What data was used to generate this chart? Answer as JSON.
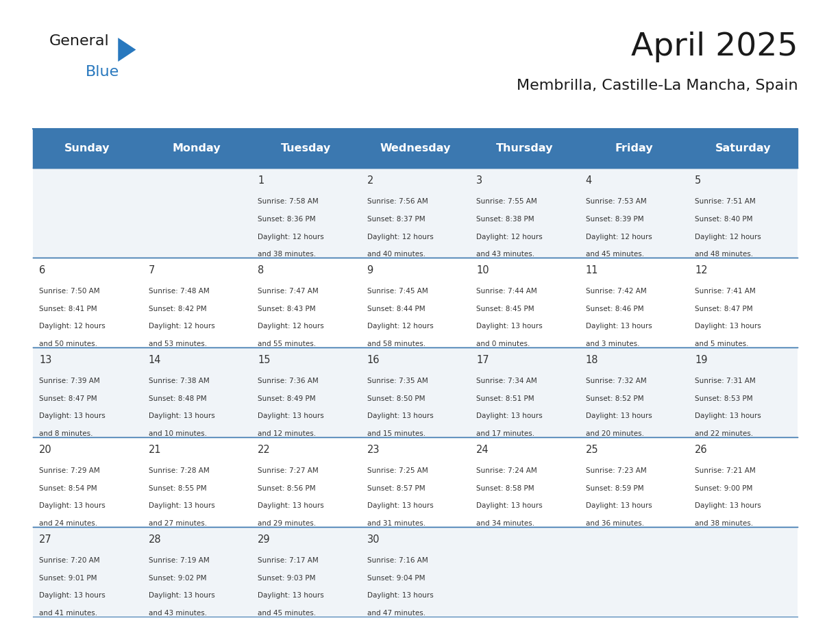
{
  "title": "April 2025",
  "subtitle": "Membrilla, Castille-La Mancha, Spain",
  "header_bg_color": "#3b78b0",
  "header_text_color": "#ffffff",
  "cell_bg_even": "#f0f4f8",
  "cell_bg_odd": "#ffffff",
  "border_color": "#3b78b0",
  "text_color": "#333333",
  "days_of_week": [
    "Sunday",
    "Monday",
    "Tuesday",
    "Wednesday",
    "Thursday",
    "Friday",
    "Saturday"
  ],
  "weeks": [
    [
      {
        "day": "",
        "info": ""
      },
      {
        "day": "",
        "info": ""
      },
      {
        "day": "1",
        "info": "Sunrise: 7:58 AM\nSunset: 8:36 PM\nDaylight: 12 hours\nand 38 minutes."
      },
      {
        "day": "2",
        "info": "Sunrise: 7:56 AM\nSunset: 8:37 PM\nDaylight: 12 hours\nand 40 minutes."
      },
      {
        "day": "3",
        "info": "Sunrise: 7:55 AM\nSunset: 8:38 PM\nDaylight: 12 hours\nand 43 minutes."
      },
      {
        "day": "4",
        "info": "Sunrise: 7:53 AM\nSunset: 8:39 PM\nDaylight: 12 hours\nand 45 minutes."
      },
      {
        "day": "5",
        "info": "Sunrise: 7:51 AM\nSunset: 8:40 PM\nDaylight: 12 hours\nand 48 minutes."
      }
    ],
    [
      {
        "day": "6",
        "info": "Sunrise: 7:50 AM\nSunset: 8:41 PM\nDaylight: 12 hours\nand 50 minutes."
      },
      {
        "day": "7",
        "info": "Sunrise: 7:48 AM\nSunset: 8:42 PM\nDaylight: 12 hours\nand 53 minutes."
      },
      {
        "day": "8",
        "info": "Sunrise: 7:47 AM\nSunset: 8:43 PM\nDaylight: 12 hours\nand 55 minutes."
      },
      {
        "day": "9",
        "info": "Sunrise: 7:45 AM\nSunset: 8:44 PM\nDaylight: 12 hours\nand 58 minutes."
      },
      {
        "day": "10",
        "info": "Sunrise: 7:44 AM\nSunset: 8:45 PM\nDaylight: 13 hours\nand 0 minutes."
      },
      {
        "day": "11",
        "info": "Sunrise: 7:42 AM\nSunset: 8:46 PM\nDaylight: 13 hours\nand 3 minutes."
      },
      {
        "day": "12",
        "info": "Sunrise: 7:41 AM\nSunset: 8:47 PM\nDaylight: 13 hours\nand 5 minutes."
      }
    ],
    [
      {
        "day": "13",
        "info": "Sunrise: 7:39 AM\nSunset: 8:47 PM\nDaylight: 13 hours\nand 8 minutes."
      },
      {
        "day": "14",
        "info": "Sunrise: 7:38 AM\nSunset: 8:48 PM\nDaylight: 13 hours\nand 10 minutes."
      },
      {
        "day": "15",
        "info": "Sunrise: 7:36 AM\nSunset: 8:49 PM\nDaylight: 13 hours\nand 12 minutes."
      },
      {
        "day": "16",
        "info": "Sunrise: 7:35 AM\nSunset: 8:50 PM\nDaylight: 13 hours\nand 15 minutes."
      },
      {
        "day": "17",
        "info": "Sunrise: 7:34 AM\nSunset: 8:51 PM\nDaylight: 13 hours\nand 17 minutes."
      },
      {
        "day": "18",
        "info": "Sunrise: 7:32 AM\nSunset: 8:52 PM\nDaylight: 13 hours\nand 20 minutes."
      },
      {
        "day": "19",
        "info": "Sunrise: 7:31 AM\nSunset: 8:53 PM\nDaylight: 13 hours\nand 22 minutes."
      }
    ],
    [
      {
        "day": "20",
        "info": "Sunrise: 7:29 AM\nSunset: 8:54 PM\nDaylight: 13 hours\nand 24 minutes."
      },
      {
        "day": "21",
        "info": "Sunrise: 7:28 AM\nSunset: 8:55 PM\nDaylight: 13 hours\nand 27 minutes."
      },
      {
        "day": "22",
        "info": "Sunrise: 7:27 AM\nSunset: 8:56 PM\nDaylight: 13 hours\nand 29 minutes."
      },
      {
        "day": "23",
        "info": "Sunrise: 7:25 AM\nSunset: 8:57 PM\nDaylight: 13 hours\nand 31 minutes."
      },
      {
        "day": "24",
        "info": "Sunrise: 7:24 AM\nSunset: 8:58 PM\nDaylight: 13 hours\nand 34 minutes."
      },
      {
        "day": "25",
        "info": "Sunrise: 7:23 AM\nSunset: 8:59 PM\nDaylight: 13 hours\nand 36 minutes."
      },
      {
        "day": "26",
        "info": "Sunrise: 7:21 AM\nSunset: 9:00 PM\nDaylight: 13 hours\nand 38 minutes."
      }
    ],
    [
      {
        "day": "27",
        "info": "Sunrise: 7:20 AM\nSunset: 9:01 PM\nDaylight: 13 hours\nand 41 minutes."
      },
      {
        "day": "28",
        "info": "Sunrise: 7:19 AM\nSunset: 9:02 PM\nDaylight: 13 hours\nand 43 minutes."
      },
      {
        "day": "29",
        "info": "Sunrise: 7:17 AM\nSunset: 9:03 PM\nDaylight: 13 hours\nand 45 minutes."
      },
      {
        "day": "30",
        "info": "Sunrise: 7:16 AM\nSunset: 9:04 PM\nDaylight: 13 hours\nand 47 minutes."
      },
      {
        "day": "",
        "info": ""
      },
      {
        "day": "",
        "info": ""
      },
      {
        "day": "",
        "info": ""
      }
    ]
  ],
  "logo_general_color": "#1a1a1a",
  "logo_blue_color": "#2878be",
  "logo_triangle_color": "#2878be"
}
